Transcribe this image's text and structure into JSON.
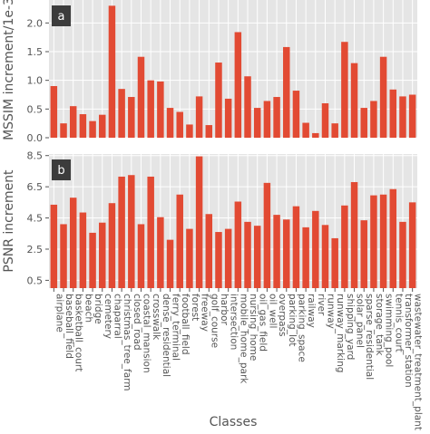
{
  "chart_data": {
    "type": "bar",
    "bar_color": "#e24a33",
    "panel_background": "#e5e5e5",
    "grid": true,
    "grid_color": "#ffffff",
    "xlabel": "Classes",
    "categories": [
      "airplane",
      "baseball_field",
      "basketball_court",
      "beach",
      "bridge",
      "cemetery",
      "chaparral",
      "christmas_tree_farm",
      "closed_road",
      "coastal_mansion",
      "crosswalk",
      "dense_residential",
      "ferry_terminal",
      "football_field",
      "forest",
      "freeway",
      "golf_course",
      "harbor",
      "intersection",
      "mobile_home_park",
      "nursing_home",
      "oil_gas_field",
      "oil_well",
      "overpass",
      "parking_lot",
      "parking_space",
      "railway",
      "river",
      "runway",
      "runway_marking",
      "shipping_yard",
      "solar_panel",
      "sparse_residential",
      "storage_tank",
      "swimming_pool",
      "tennis_court",
      "transformer_station",
      "wastewater_treatment_plant"
    ],
    "panels": [
      {
        "tag": "a",
        "ylabel": "MSSIM increment/1e-3",
        "ylim": [
          0,
          2.4
        ],
        "yticks": [
          "0.0",
          "0.5",
          "1.0",
          "1.5",
          "2.0"
        ],
        "ytick_values": [
          0,
          0.5,
          1.0,
          1.5,
          2.0
        ],
        "values": [
          0.9,
          0.25,
          0.55,
          0.41,
          0.29,
          0.4,
          2.3,
          0.85,
          0.71,
          1.41,
          1.0,
          0.98,
          0.52,
          0.45,
          0.23,
          0.72,
          0.22,
          1.31,
          0.68,
          1.84,
          1.07,
          0.52,
          0.64,
          0.71,
          1.58,
          0.82,
          0.26,
          0.08,
          0.6,
          0.25,
          1.67,
          1.3,
          0.52,
          0.64,
          1.41,
          0.84,
          0.72,
          0.75
        ]
      },
      {
        "tag": "b",
        "ylabel": "PSNR increment",
        "ylim": [
          0.0,
          8.6
        ],
        "yticks": [
          "0.5",
          "2.5",
          "4.5",
          "6.5",
          "8.5"
        ],
        "ytick_values": [
          0.5,
          2.5,
          4.5,
          6.5,
          8.5
        ],
        "values": [
          5.35,
          4.1,
          5.8,
          4.85,
          3.55,
          4.2,
          5.45,
          7.15,
          7.25,
          4.1,
          7.15,
          4.55,
          3.1,
          6.0,
          3.8,
          8.45,
          4.75,
          3.6,
          3.8,
          5.55,
          4.25,
          4.0,
          6.75,
          4.7,
          4.4,
          5.25,
          3.9,
          4.95,
          4.05,
          3.2,
          5.3,
          6.8,
          4.35,
          5.95,
          6.0,
          6.35,
          4.25,
          5.5
        ]
      }
    ]
  }
}
